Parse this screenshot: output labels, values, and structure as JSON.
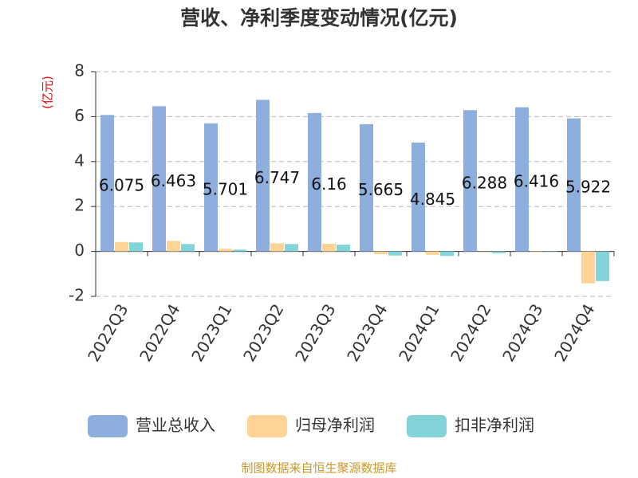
{
  "chart_data": {
    "type": "bar",
    "title": "营收、净利季度变动情况(亿元)",
    "y_label": "(亿元)",
    "source": "制图数据来自恒生聚源数据库",
    "categories": [
      "2022Q3",
      "2022Q4",
      "2023Q1",
      "2023Q2",
      "2023Q3",
      "2023Q4",
      "2024Q1",
      "2024Q2",
      "2024Q3",
      "2024Q4"
    ],
    "series": [
      {
        "name": "营业总收入",
        "color": "#8eaedd",
        "values": [
          6.075,
          6.463,
          5.701,
          6.747,
          6.16,
          5.665,
          4.845,
          6.288,
          6.416,
          5.922
        ],
        "show_labels": true
      },
      {
        "name": "归母净利润",
        "color": "#fdd495",
        "values": [
          0.42,
          0.47,
          0.12,
          0.36,
          0.34,
          -0.12,
          -0.15,
          0.01,
          0.02,
          -1.42
        ]
      },
      {
        "name": "扣非净利润",
        "color": "#82d4d8",
        "values": [
          0.4,
          0.33,
          0.08,
          0.33,
          0.3,
          -0.18,
          -0.2,
          -0.08,
          0.02,
          -1.32
        ]
      }
    ],
    "ylim": [
      -2,
      8
    ],
    "yticks": [
      -2,
      0,
      2,
      4,
      6,
      8
    ],
    "grid": true,
    "legend": "bottom"
  }
}
